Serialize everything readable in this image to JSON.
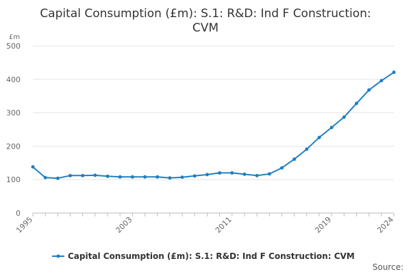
{
  "chart_data": {
    "type": "line",
    "title_lines": [
      "Capital Consumption (£m): S.1: R&D: Ind F Construction:",
      "CVM"
    ],
    "ylabel": "£m",
    "ylim": [
      0,
      500
    ],
    "yticks": [
      0,
      100,
      200,
      300,
      400,
      500
    ],
    "xlim": [
      1995,
      2024
    ],
    "xticks": [
      1995,
      2003,
      2011,
      2019,
      2024
    ],
    "grid": true,
    "legend_position": "bottom",
    "series": [
      {
        "name": "Capital Consumption (£m): S.1: R&D: Ind F Construction: CVM",
        "color": "#1f7fbf",
        "x": [
          1995,
          1996,
          1997,
          1998,
          1999,
          2000,
          2001,
          2002,
          2003,
          2004,
          2005,
          2006,
          2007,
          2008,
          2009,
          2010,
          2011,
          2012,
          2013,
          2014,
          2015,
          2016,
          2017,
          2018,
          2019,
          2020,
          2021,
          2022,
          2023,
          2024
        ],
        "values": [
          138,
          106,
          104,
          112,
          112,
          113,
          110,
          108,
          108,
          108,
          108,
          105,
          107,
          111,
          115,
          120,
          120,
          116,
          112,
          117,
          135,
          161,
          191,
          226,
          256,
          287,
          328,
          368,
          396,
          421
        ]
      }
    ]
  },
  "footer": {
    "source_label": "Source:"
  }
}
